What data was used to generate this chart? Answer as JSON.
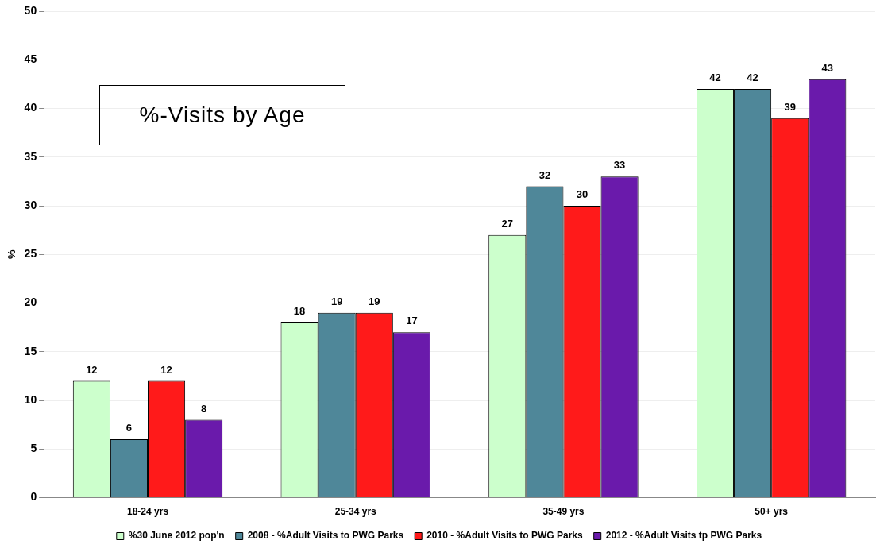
{
  "chart_data": {
    "type": "bar",
    "title": "%-Visits by Age",
    "ylabel": "%",
    "categories": [
      "18-24 yrs",
      "25-34 yrs",
      "35-49 yrs",
      "50+ yrs"
    ],
    "series": [
      {
        "name": "%30 June 2012 pop'n",
        "color": "#ccffcc",
        "values": [
          12,
          18,
          27,
          42
        ]
      },
      {
        "name": "2008 - %Adult Visits to PWG Parks",
        "color": "#4f8799",
        "values": [
          6,
          19,
          32,
          42
        ]
      },
      {
        "name": "2010 - %Adult Visits to PWG Parks",
        "color": "#ff1a1a",
        "values": [
          12,
          19,
          30,
          39
        ]
      },
      {
        "name": "2012 - %Adult Visits tp PWG Parks",
        "color": "#6a1aab",
        "values": [
          8,
          17,
          33,
          43
        ]
      }
    ],
    "ylim": [
      0,
      50
    ],
    "yticks": [
      0,
      5,
      10,
      15,
      20,
      25,
      30,
      35,
      40,
      45,
      50
    ],
    "grid": "y",
    "legend": "bottom",
    "data_labels": true
  }
}
